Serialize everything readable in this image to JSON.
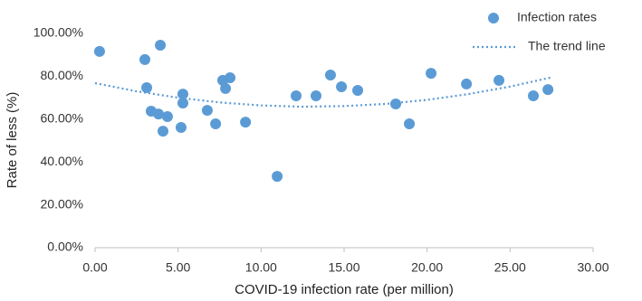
{
  "chart_data": {
    "type": "scatter",
    "xlabel": "COVID-19 infection rate (per million)",
    "ylabel": "Rate of less (%)",
    "xlim": [
      0,
      30
    ],
    "xticks": [
      {
        "value": 0,
        "label": "0.00"
      },
      {
        "value": 5,
        "label": "5.00"
      },
      {
        "value": 10,
        "label": "10.00"
      },
      {
        "value": 15,
        "label": "15.00"
      },
      {
        "value": 20,
        "label": "20.00"
      },
      {
        "value": 25,
        "label": "25.00"
      },
      {
        "value": 30,
        "label": "30.00"
      }
    ],
    "ylim": [
      0,
      100
    ],
    "yticks": [
      {
        "value": 0,
        "label": "0.00%"
      },
      {
        "value": 20,
        "label": "20.00%"
      },
      {
        "value": 40,
        "label": "40.00%"
      },
      {
        "value": 60,
        "label": "60.00%"
      },
      {
        "value": 80,
        "label": "80.00%"
      },
      {
        "value": 100,
        "label": "100.00%"
      }
    ],
    "grid": false,
    "legend": "top-right",
    "series": [
      {
        "name": "Infection rates",
        "color": "#5b9bd5",
        "style": "markers",
        "x": [
          0.27,
          3.0,
          3.93,
          3.11,
          3.38,
          3.82,
          4.36,
          4.09,
          5.29,
          5.29,
          5.18,
          6.76,
          7.26,
          7.69,
          7.86,
          8.13,
          9.06,
          10.97,
          12.11,
          13.31,
          14.18,
          14.84,
          15.82,
          18.11,
          18.93,
          20.24,
          22.37,
          24.33,
          26.4,
          27.28
        ],
        "values": [
          91.6,
          87.8,
          94.5,
          74.7,
          63.7,
          62.4,
          61.2,
          54.4,
          71.7,
          67.5,
          56.1,
          64.1,
          57.8,
          78.1,
          74.3,
          79.3,
          58.6,
          33.3,
          70.9,
          70.9,
          80.6,
          75.1,
          73.4,
          67.1,
          57.8,
          81.4,
          76.4,
          78.1,
          70.9,
          73.8
        ]
      },
      {
        "name": "The trend line",
        "color": "#5b9bd5",
        "style": "dotted",
        "x": [
          0,
          2.5,
          5,
          7.5,
          10,
          12.5,
          15,
          17.5,
          20,
          22.5,
          25,
          27.5
        ],
        "values": [
          76.8,
          73.0,
          70.0,
          67.8,
          66.4,
          65.8,
          66.1,
          67.1,
          69.0,
          71.7,
          75.2,
          79.5
        ]
      }
    ]
  }
}
